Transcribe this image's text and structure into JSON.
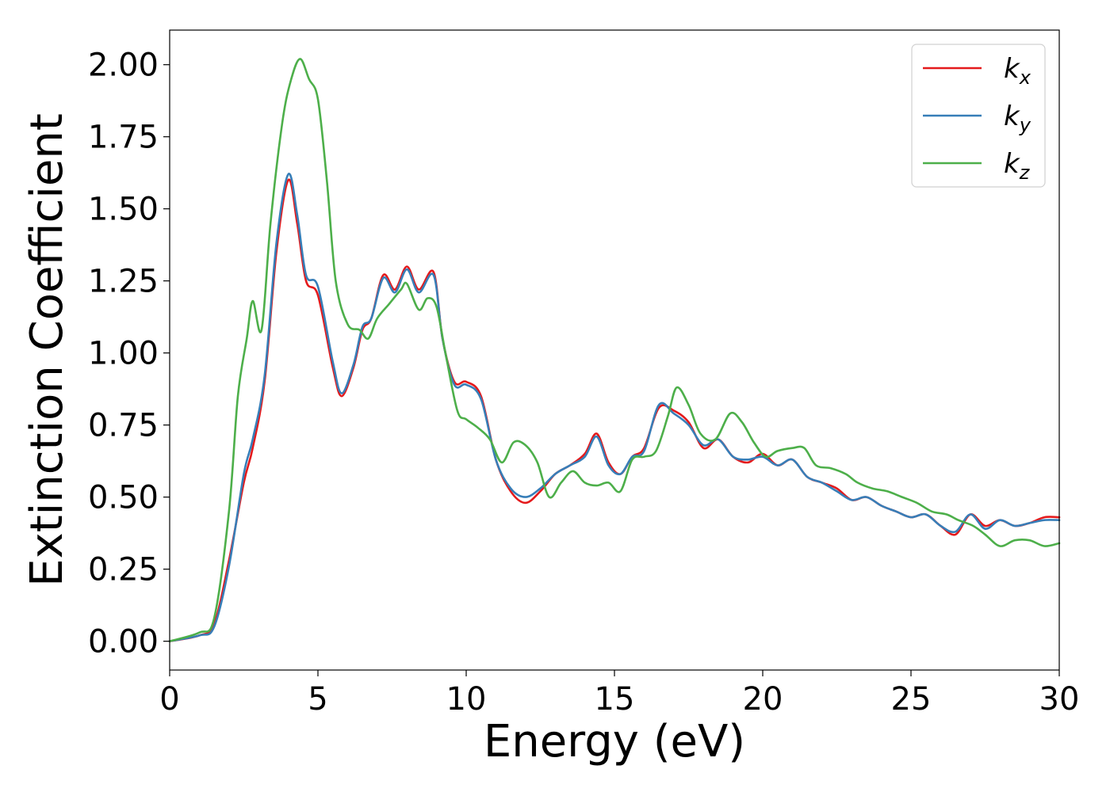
{
  "chart_data": {
    "type": "line",
    "xlabel": "Energy (eV)",
    "ylabel": "Extinction Coefficient",
    "xlim": [
      0,
      30
    ],
    "ylim": [
      -0.1,
      2.12
    ],
    "grid": false,
    "legend_placement": "top-right",
    "x_ticks": [
      0,
      5,
      10,
      15,
      20,
      25,
      30
    ],
    "x_tick_labels": [
      "0",
      "5",
      "10",
      "15",
      "20",
      "25",
      "30"
    ],
    "y_ticks": [
      0.0,
      0.25,
      0.5,
      0.75,
      1.0,
      1.25,
      1.5,
      1.75,
      2.0
    ],
    "y_tick_labels": [
      "0.00",
      "0.25",
      "0.50",
      "0.75",
      "1.00",
      "1.25",
      "1.50",
      "1.75",
      "2.00"
    ],
    "series": [
      {
        "name": "k",
        "subscript": "x",
        "color": "#e41a1c",
        "x": [
          0,
          1,
          1.5,
          2.0,
          2.5,
          2.8,
          3.2,
          3.6,
          4.0,
          4.3,
          4.6,
          5.0,
          5.5,
          5.8,
          6.2,
          6.5,
          6.8,
          7.2,
          7.6,
          8.0,
          8.4,
          8.9,
          9.2,
          9.6,
          10.0,
          10.5,
          11.0,
          11.5,
          12.0,
          12.5,
          13.0,
          13.5,
          14.0,
          14.4,
          14.8,
          15.2,
          15.6,
          16.0,
          16.5,
          17.0,
          17.5,
          18.0,
          18.5,
          19.0,
          19.5,
          20.0,
          20.5,
          21.0,
          21.5,
          22.0,
          22.5,
          23.0,
          23.5,
          24.0,
          24.5,
          25.0,
          25.5,
          26.0,
          26.5,
          27.0,
          27.5,
          28.0,
          28.5,
          29.0,
          29.5,
          30.0
        ],
        "y": [
          0.0,
          0.02,
          0.06,
          0.28,
          0.55,
          0.67,
          0.9,
          1.35,
          1.6,
          1.45,
          1.25,
          1.2,
          0.95,
          0.85,
          0.95,
          1.08,
          1.12,
          1.27,
          1.22,
          1.3,
          1.22,
          1.28,
          1.05,
          0.9,
          0.9,
          0.85,
          0.63,
          0.52,
          0.48,
          0.52,
          0.58,
          0.61,
          0.65,
          0.72,
          0.62,
          0.58,
          0.64,
          0.67,
          0.81,
          0.8,
          0.76,
          0.67,
          0.7,
          0.64,
          0.62,
          0.65,
          0.61,
          0.63,
          0.57,
          0.55,
          0.53,
          0.49,
          0.5,
          0.47,
          0.45,
          0.43,
          0.44,
          0.4,
          0.37,
          0.44,
          0.4,
          0.42,
          0.4,
          0.41,
          0.43,
          0.43
        ]
      },
      {
        "name": "k",
        "subscript": "y",
        "color": "#377eb8",
        "x": [
          0,
          1,
          1.5,
          2.0,
          2.5,
          2.8,
          3.2,
          3.6,
          4.0,
          4.3,
          4.6,
          5.0,
          5.5,
          5.8,
          6.2,
          6.5,
          6.8,
          7.2,
          7.6,
          8.0,
          8.4,
          8.9,
          9.2,
          9.6,
          10.0,
          10.5,
          11.0,
          11.5,
          12.0,
          12.5,
          13.0,
          13.5,
          14.0,
          14.4,
          14.8,
          15.2,
          15.6,
          16.0,
          16.5,
          17.0,
          17.5,
          18.0,
          18.5,
          19.0,
          19.5,
          20.0,
          20.5,
          21.0,
          21.5,
          22.0,
          22.5,
          23.0,
          23.5,
          24.0,
          24.5,
          25.0,
          25.5,
          26.0,
          26.5,
          27.0,
          27.5,
          28.0,
          28.5,
          29.0,
          29.5,
          30.0
        ],
        "y": [
          0.0,
          0.02,
          0.05,
          0.26,
          0.58,
          0.7,
          0.92,
          1.38,
          1.62,
          1.48,
          1.27,
          1.23,
          0.97,
          0.86,
          0.96,
          1.09,
          1.12,
          1.26,
          1.21,
          1.29,
          1.21,
          1.27,
          1.05,
          0.89,
          0.89,
          0.84,
          0.63,
          0.53,
          0.5,
          0.53,
          0.58,
          0.61,
          0.64,
          0.71,
          0.61,
          0.58,
          0.64,
          0.66,
          0.82,
          0.79,
          0.75,
          0.68,
          0.7,
          0.64,
          0.63,
          0.64,
          0.61,
          0.63,
          0.57,
          0.55,
          0.52,
          0.49,
          0.5,
          0.47,
          0.45,
          0.43,
          0.44,
          0.4,
          0.38,
          0.44,
          0.39,
          0.42,
          0.4,
          0.41,
          0.42,
          0.42
        ]
      },
      {
        "name": "k",
        "subscript": "z",
        "color": "#4daf4a",
        "x": [
          0,
          1,
          1.5,
          2.0,
          2.3,
          2.6,
          2.8,
          3.1,
          3.4,
          3.8,
          4.1,
          4.4,
          4.7,
          5.0,
          5.3,
          5.6,
          6.0,
          6.4,
          6.7,
          7.0,
          7.4,
          7.8,
          8.0,
          8.4,
          8.7,
          9.0,
          9.3,
          9.7,
          10.0,
          10.4,
          10.8,
          11.2,
          11.6,
          12.0,
          12.4,
          12.8,
          13.2,
          13.6,
          14.0,
          14.4,
          14.8,
          15.2,
          15.6,
          16.0,
          16.4,
          16.8,
          17.1,
          17.5,
          17.9,
          18.4,
          18.9,
          19.3,
          19.7,
          20.1,
          20.5,
          21.0,
          21.4,
          21.8,
          22.3,
          22.8,
          23.2,
          23.7,
          24.2,
          24.7,
          25.2,
          25.7,
          26.2,
          26.6,
          27.1,
          27.5,
          28.0,
          28.5,
          29.0,
          29.5,
          30.0
        ],
        "y": [
          0.0,
          0.03,
          0.08,
          0.45,
          0.85,
          1.05,
          1.18,
          1.08,
          1.45,
          1.8,
          1.95,
          2.02,
          1.95,
          1.88,
          1.6,
          1.25,
          1.1,
          1.08,
          1.05,
          1.12,
          1.17,
          1.22,
          1.24,
          1.15,
          1.19,
          1.16,
          1.0,
          0.8,
          0.77,
          0.74,
          0.7,
          0.62,
          0.69,
          0.68,
          0.62,
          0.5,
          0.55,
          0.59,
          0.55,
          0.54,
          0.55,
          0.52,
          0.63,
          0.64,
          0.66,
          0.78,
          0.88,
          0.82,
          0.72,
          0.7,
          0.79,
          0.76,
          0.69,
          0.64,
          0.66,
          0.67,
          0.67,
          0.61,
          0.6,
          0.58,
          0.55,
          0.53,
          0.52,
          0.5,
          0.48,
          0.45,
          0.44,
          0.42,
          0.4,
          0.37,
          0.33,
          0.35,
          0.35,
          0.33,
          0.34
        ]
      }
    ]
  }
}
